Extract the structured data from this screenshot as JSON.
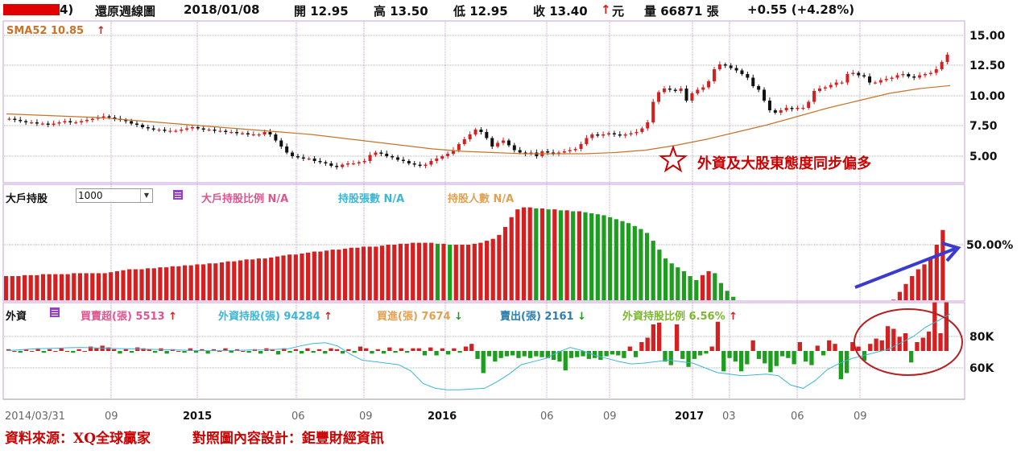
{
  "header": {
    "stock_fragment": "4)",
    "chart_name": "還原週線圖",
    "date": "2018/01/08",
    "open": "開 12.95",
    "high": "高 13.50",
    "low": "低 12.95",
    "close_label": "收 13.40",
    "close_unit": "元",
    "volume": "量 66871 張",
    "change": "+0.55 (+4.28%)"
  },
  "annotation": {
    "star_text": "外資及大股東態度同步偏多"
  },
  "panel1": {
    "legend": "SMA52 10.85",
    "y_ticks": [
      "15.00",
      "12.50",
      "10.00",
      "7.50",
      "5.00"
    ]
  },
  "panel2": {
    "title": "大戶持股",
    "select_value": "1000",
    "legend_ratio": "大戶持股比例 N/A",
    "legend_shares": "持股張數 N/A",
    "legend_people": "持股人數 N/A",
    "y_tick": "50.00%"
  },
  "panel3": {
    "title": "外資",
    "legend_net": "買賣超(張) 5513",
    "legend_hold": "外資持股(張) 94284",
    "legend_buy": "買進(張) 7674",
    "legend_sell": "賣出(張) 2161",
    "legend_ratio": "外資持股比例 6.56%",
    "y_ticks": [
      "80K",
      "60K"
    ]
  },
  "x_axis": {
    "ticks": [
      "2014/03/31",
      "09",
      "2015",
      "06",
      "09",
      "2016",
      "06",
      "09",
      "2017",
      "03",
      "06",
      "09"
    ]
  },
  "footer": {
    "source": "資料來源：XQ全球贏家",
    "design": "對照圖內容設計：鉅豐財經資訊"
  },
  "colors": {
    "up": "#d42020",
    "down": "#1e9e1e",
    "sma": "#c8732a",
    "hold_line": "#3cb6d6",
    "grid": "#c9a0d8",
    "arrow": "#3a3ad0",
    "circle": "#b52020",
    "footer": "#cc0000"
  },
  "chart_data": [
    {
      "type": "candlestick",
      "title": "還原週線圖",
      "series": [
        {
          "name": "price_close",
          "values": [
            8.1,
            8.0,
            7.9,
            7.8,
            7.8,
            7.7,
            7.7,
            7.6,
            7.7,
            7.8,
            7.9,
            7.8,
            7.8,
            7.9,
            8.0,
            8.1,
            8.2,
            8.3,
            8.2,
            8.1,
            8.0,
            7.9,
            7.7,
            7.6,
            7.4,
            7.3,
            7.2,
            7.2,
            7.1,
            7.1,
            7.1,
            7.2,
            7.3,
            7.4,
            7.3,
            7.2,
            7.2,
            7.1,
            7.1,
            7.0,
            7.0,
            6.9,
            6.9,
            6.8,
            6.8,
            6.8,
            7.0,
            6.8,
            6.3,
            5.8,
            5.3,
            5.0,
            4.9,
            4.8,
            4.8,
            4.6,
            4.5,
            4.4,
            4.2,
            4.1,
            4.3,
            4.4,
            4.4,
            4.5,
            4.6,
            5.1,
            5.3,
            5.2,
            5.0,
            4.9,
            4.7,
            4.6,
            4.4,
            4.3,
            4.2,
            4.3,
            4.6,
            4.8,
            5.0,
            5.2,
            5.5,
            6.0,
            6.4,
            6.8,
            7.2,
            7.0,
            6.5,
            5.8,
            6.1,
            6.3,
            5.9,
            5.5,
            5.3,
            5.2,
            5.3,
            5.0,
            5.4,
            5.3,
            5.2,
            5.3,
            5.4,
            5.5,
            5.6,
            6.0,
            6.5,
            6.8,
            6.7,
            6.8,
            6.9,
            6.8,
            6.7,
            6.8,
            6.9,
            7.0,
            7.3,
            7.8,
            9.5,
            10.3,
            10.6,
            10.5,
            10.4,
            10.6,
            9.6,
            10.2,
            10.5,
            10.7,
            11.2,
            12.2,
            12.6,
            12.5,
            12.3,
            12.1,
            11.8,
            11.5,
            10.8,
            10.5,
            9.6,
            8.8,
            8.6,
            8.8,
            9.0,
            8.9,
            9.0,
            9.0,
            9.5,
            10.4,
            10.6,
            10.7,
            10.9,
            11.1,
            11.1,
            11.8,
            11.9,
            11.7,
            11.6,
            11.1,
            11.1,
            11.3,
            11.4,
            11.5,
            11.7,
            11.8,
            11.6,
            11.5,
            11.7,
            11.8,
            11.9,
            12.2,
            12.8,
            13.4
          ]
        },
        {
          "name": "SMA52",
          "values": [
            8.5,
            8.4,
            8.3,
            8.2,
            8.0,
            7.8,
            7.6,
            7.4,
            7.2,
            7.0,
            6.8,
            6.5,
            6.2,
            5.9,
            5.6,
            5.4,
            5.3,
            5.2,
            5.2,
            5.2,
            5.3,
            5.5,
            5.9,
            6.4,
            7.0,
            7.6,
            8.3,
            9.0,
            9.6,
            10.2,
            10.6,
            10.85
          ]
        }
      ],
      "legend": "SMA52 10.85",
      "ylim": [
        3,
        16
      ],
      "y_ticks": [
        15.0,
        12.5,
        10.0,
        7.5,
        5.0
      ]
    },
    {
      "type": "bar",
      "title": "大戶持股",
      "series": [
        {
          "name": "大戶持股比例",
          "values": [
            46.8,
            46.8,
            46.8,
            46.9,
            46.9,
            46.9,
            47.0,
            47.0,
            47.0,
            47.0,
            47.0,
            47.1,
            47.1,
            47.1,
            47.1,
            47.1,
            47.1,
            47.2,
            47.3,
            47.4,
            47.5,
            47.5,
            47.5,
            47.6,
            47.6,
            47.7,
            47.7,
            47.8,
            47.8,
            47.9,
            47.9,
            48.0,
            48.0,
            48.1,
            48.1,
            48.2,
            48.3,
            48.3,
            48.4,
            48.5,
            48.5,
            48.6,
            48.6,
            48.7,
            48.8,
            48.9,
            49.0,
            49.0,
            49.1,
            49.2,
            49.3,
            49.3,
            49.4,
            49.5,
            49.5,
            49.6,
            49.7,
            49.7,
            49.8,
            49.8,
            49.8,
            49.9,
            50.0,
            50.0,
            50.1,
            50.1,
            50.2,
            50.2,
            50.2,
            50.2,
            50.1,
            50.1,
            50.0,
            50.0,
            50.0,
            50.0,
            50.1,
            50.2,
            50.4,
            50.6,
            51.0,
            51.8,
            52.8,
            53.6,
            53.8,
            53.8,
            53.7,
            53.7,
            53.6,
            53.6,
            53.5,
            53.5,
            53.4,
            53.4,
            53.3,
            53.2,
            53.1,
            53.0,
            52.8,
            52.6,
            52.4,
            52.2,
            51.9,
            51.6,
            51.2,
            50.4,
            49.5,
            48.6,
            48.1,
            47.7,
            47.3,
            46.8,
            46.4,
            46.9,
            47.3,
            47.1,
            46.1,
            45.3,
            44.7,
            44.3,
            44.0,
            43.8,
            43.6,
            43.3,
            43.6,
            43.9,
            43.7,
            43.4,
            42.8,
            42.3,
            41.7,
            41.5,
            41.3,
            41.2,
            41.1,
            41.2,
            41.4,
            41.6,
            41.6,
            41.7,
            42.0,
            42.3,
            42.8,
            43.6,
            44.4,
            45.2,
            46.0,
            46.8,
            47.5,
            48.0,
            48.6,
            50.0,
            51.5
          ]
        }
      ],
      "y_ticks": [
        "50.00%"
      ]
    },
    {
      "type": "bar",
      "title": "外資",
      "series": [
        {
          "name": "買賣超(張)",
          "values": [
            200,
            0,
            -200,
            200,
            0,
            300,
            -200,
            200,
            0,
            300,
            0,
            -200,
            200,
            0,
            500,
            300,
            600,
            400,
            200,
            -300,
            200,
            -200,
            400,
            300,
            200,
            -200,
            300,
            -300,
            200,
            0,
            -200,
            300,
            -200,
            200,
            -300,
            200,
            0,
            300,
            -200,
            200,
            0,
            -200,
            200,
            -300,
            300,
            200,
            -400,
            300,
            -200,
            200,
            -300,
            300,
            -200,
            200,
            -300,
            300,
            200,
            -300,
            200,
            -200,
            500,
            300,
            -300,
            200,
            -300,
            400,
            -200,
            300,
            -200,
            300,
            300,
            -500,
            400,
            -500,
            300,
            -400,
            300,
            -200,
            500,
            800,
            -900,
            -2500,
            -600,
            -1200,
            -800,
            -600,
            -500,
            -800,
            -600,
            -800,
            -600,
            -700,
            -800,
            -1000,
            -1200,
            -2200,
            -800,
            -700,
            -600,
            -900,
            -800,
            -1000,
            -600,
            -400,
            -500,
            -800,
            500,
            -700,
            1000,
            1500,
            3000,
            3200,
            -1200,
            -1600,
            3000,
            -900,
            -1800,
            -900,
            -500,
            -300,
            500,
            3300,
            -2300,
            -800,
            -1200,
            -2300,
            -1500,
            1200,
            -900,
            -1400,
            -2400,
            -1700,
            -600,
            -800,
            -1500,
            1000,
            -1200,
            -1600,
            600,
            -500,
            1200,
            800,
            -3200,
            -2500,
            1000,
            500,
            -1100,
            800,
            1400,
            1200,
            2800,
            2500,
            1600,
            2000,
            -1300,
            1000,
            1500,
            2200,
            5500,
            2000,
            5513
          ]
        },
        {
          "name": "外資持股(張)",
          "values": [
            71000,
            71500,
            72000,
            72300,
            72500,
            72800,
            73000,
            72800,
            72500,
            72300,
            72200,
            72000,
            71800,
            71600,
            71400,
            71200,
            71000,
            71000,
            71000,
            71200,
            71400,
            71500,
            71800,
            72200,
            74000,
            75500,
            76000,
            74000,
            69000,
            65000,
            64000,
            63000,
            62000,
            58000,
            50000,
            47000,
            46000,
            46000,
            46500,
            47000,
            51000,
            56000,
            62000,
            64000,
            66000,
            70000,
            73000,
            71000,
            68000,
            66000,
            64000,
            62500,
            63000,
            64000,
            65000,
            64000,
            63000,
            60000,
            57000,
            56000,
            55000,
            55500,
            56000,
            55000,
            49000,
            47000,
            52000,
            59000,
            63000,
            66000,
            68000,
            70000,
            72000,
            76000,
            80000,
            86000,
            90000,
            94284
          ]
        }
      ],
      "legend": [
        "買賣超(張) 5513",
        "外資持股(張) 94284",
        "買進(張) 7674",
        "賣出(張) 2161",
        "外資持股比例 6.56%"
      ],
      "y_ticks": [
        "80K",
        "60K"
      ]
    }
  ]
}
